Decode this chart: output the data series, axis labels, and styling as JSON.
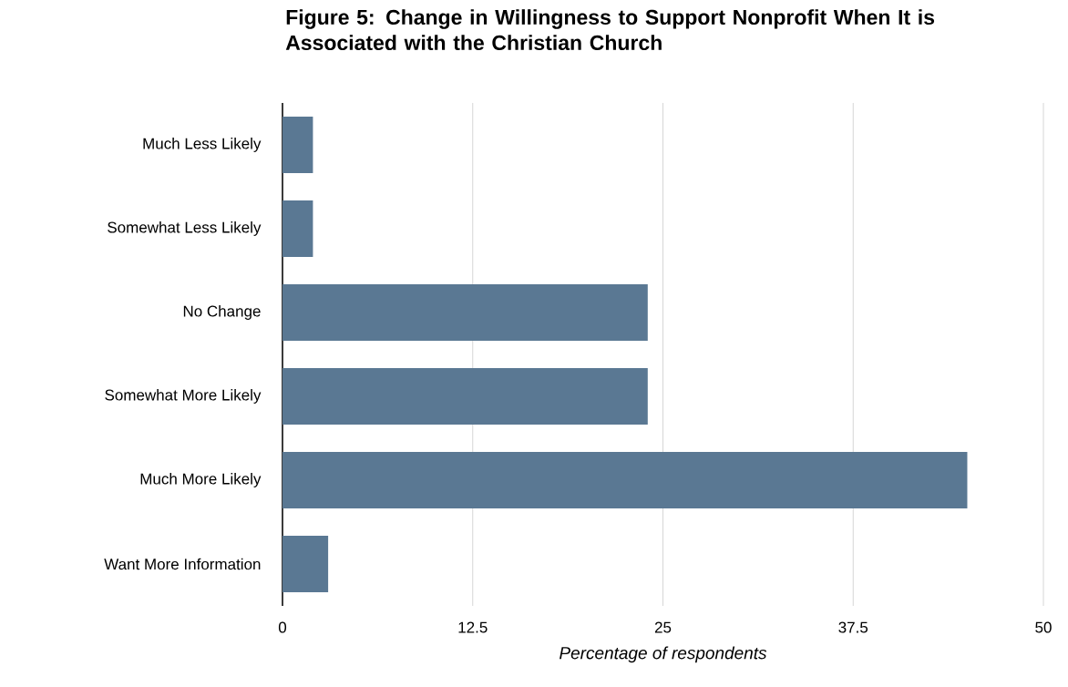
{
  "chart_data": {
    "type": "bar",
    "orientation": "horizontal",
    "title": "Figure 5: Change in Willingness to Support Nonprofit When It is Associated with the Christian Church",
    "xlabel": "Percentage of respondents",
    "categories": [
      "Much Less Likely",
      "Somewhat Less Likely",
      "No Change",
      "Somewhat More Likely",
      "Much More Likely",
      "Want More Information"
    ],
    "values": [
      2,
      2,
      24,
      24,
      45,
      3
    ],
    "color": "#5a7893",
    "xlim": [
      0,
      50
    ],
    "xticks": [
      0,
      12.5,
      25,
      37.5,
      50
    ],
    "grid": "x"
  }
}
